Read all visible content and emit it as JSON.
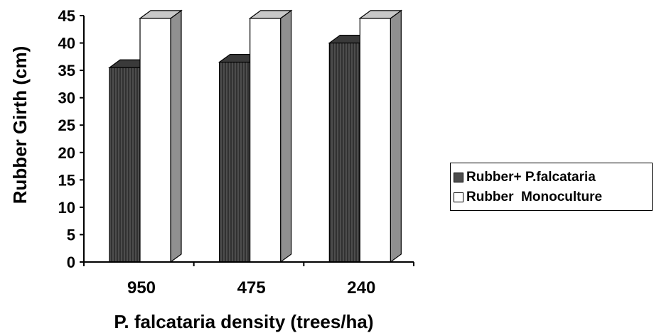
{
  "chart_data": {
    "type": "bar",
    "categories": [
      "950",
      "475",
      "240"
    ],
    "series": [
      {
        "name": "Rubber+ P.falcataria",
        "values": [
          35.5,
          36.5,
          40
        ]
      },
      {
        "name": "Rubber  Monoculture",
        "values": [
          44.5,
          44.5,
          44.5
        ]
      }
    ],
    "xlabel": "P. falcataria density (trees/ha)",
    "ylabel": "Rubber Girth (cm)",
    "ylim": [
      0,
      45
    ],
    "yticks": [
      0,
      5,
      10,
      15,
      20,
      25,
      30,
      35,
      40,
      45
    ],
    "grid": false,
    "legend_position": "right",
    "style": "3d-column",
    "colors": {
      "series_0_front": "#4d4d4d",
      "series_0_side": "#2a2a2a",
      "series_0_top": "#3a3a3a",
      "series_1_front": "#ffffff",
      "series_1_side": "#909090",
      "series_1_top": "#c8c8c8",
      "axis": "#000000"
    }
  }
}
